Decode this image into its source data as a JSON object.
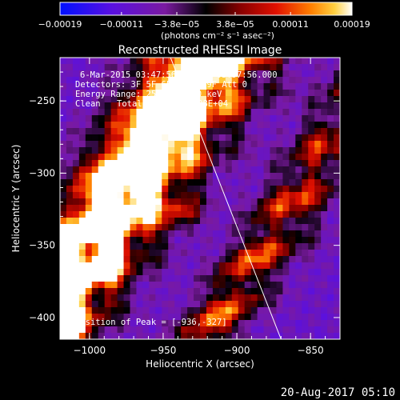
{
  "chart_data": {
    "type": "heatmap",
    "title": "Reconstructed RHESSI Image",
    "xlabel": "Heliocentric X (arcsec)",
    "ylabel": "Heliocentric Y (arcsec)",
    "xlim": [
      -1020,
      -830
    ],
    "ylim": [
      -415,
      -220
    ],
    "x_ticks": [
      {
        "value": -1000,
        "label": "−1000"
      },
      {
        "value": -950,
        "label": "−950"
      },
      {
        "value": -900,
        "label": "−900"
      },
      {
        "value": -850,
        "label": "−850"
      }
    ],
    "y_ticks": [
      {
        "value": -250,
        "label": "−250"
      },
      {
        "value": -300,
        "label": "−300"
      },
      {
        "value": -350,
        "label": "−350"
      },
      {
        "value": -400,
        "label": "−400"
      }
    ],
    "colorbar": {
      "range": [
        -0.00019,
        0.00019
      ],
      "units_label": "(photons cm⁻² s⁻¹ asec⁻²)",
      "ticks": [
        {
          "value": -0.00019,
          "label": "−0.00019"
        },
        {
          "value": -0.00011,
          "label": "−0.00011"
        },
        {
          "value": -3.8e-05,
          "label": "−3.8e−05"
        },
        {
          "value": 3.8e-05,
          "label": "3.8e−05"
        },
        {
          "value": 0.00011,
          "label": "0.00011"
        },
        {
          "value": 0.00019,
          "label": "0.00019"
        }
      ]
    },
    "annotations": {
      "time_range": "6-Mar-2015 03:47:56.000 to 03:57:56.000",
      "detectors": "Detectors: 3F 5F 6F 7F 8F 9F Att 0",
      "energy_range": "Energy Range: 25.0 - 50.0 keV",
      "algorithm": "Clean",
      "total_counts": "Total counts: 1.08E+04",
      "peak_position": "Position of Peak = [-936,-327]"
    },
    "peak": {
      "x": -936,
      "y": -327
    },
    "limb_line": [
      [
        -945,
        -220
      ],
      [
        -870,
        -415
      ]
    ],
    "image_structure": {
      "background_value": -9e-05,
      "ridges": [
        {
          "x0": -1020,
          "y0": -372,
          "angle_deg": 62,
          "width": 20,
          "amplitude": 0.00022
        },
        {
          "x0": -958,
          "y0": -300,
          "angle_deg": 55,
          "width": 22,
          "amplitude": 0.00034
        },
        {
          "x0": -940,
          "y0": -250,
          "angle_deg": 60,
          "width": 16,
          "amplitude": 0.00024
        },
        {
          "x0": -870,
          "y0": -320,
          "angle_deg": 60,
          "width": 12,
          "amplitude": 0.00015
        },
        {
          "x0": -905,
          "y0": -395,
          "angle_deg": 55,
          "width": 14,
          "amplitude": 0.00016
        }
      ]
    }
  },
  "footer": {
    "date": "20-Aug-2017 05:10"
  }
}
